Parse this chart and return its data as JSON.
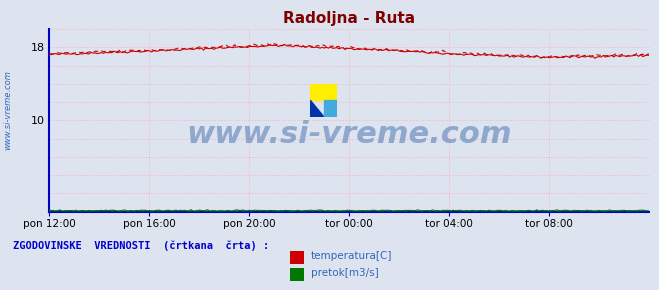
{
  "title": "Radoljna - Ruta",
  "title_color": "#800000",
  "title_fontsize": 11,
  "fig_bg_color": "#dde4f0",
  "plot_bg_color": "#dde4f0",
  "ylim": [
    0,
    20
  ],
  "yticks": [
    10,
    18
  ],
  "xlim": [
    0,
    288
  ],
  "xtick_positions": [
    0,
    48,
    96,
    144,
    192,
    240
  ],
  "xtick_labels": [
    "pon 12:00",
    "pon 16:00",
    "pon 20:00",
    "tor 00:00",
    "tor 04:00",
    "tor 08:00"
  ],
  "grid_yticks": [
    0,
    2,
    4,
    6,
    8,
    10,
    12,
    14,
    16,
    18,
    20
  ],
  "grid_xticks": [
    0,
    48,
    96,
    144,
    192,
    240,
    288
  ],
  "temp_color": "#cc0000",
  "flow_color": "#007700",
  "grid_color": "#ffaaaa",
  "axis_color": "#0000cc",
  "watermark_text": "www.si-vreme.com",
  "watermark_color": "#6688bb",
  "watermark_fontsize": 22,
  "watermark_alpha": 0.65,
  "legend_text": "ZGODOVINSKE  VREDNOSTI  (črtkana  črta) :",
  "legend_temp_label": "temperatura[C]",
  "legend_flow_label": "pretok[m3/s]",
  "side_label": "www.si-vreme.com",
  "side_color": "#3366bb"
}
